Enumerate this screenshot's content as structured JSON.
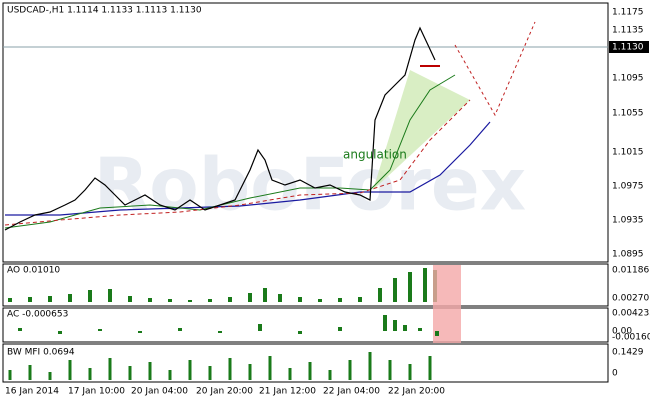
{
  "header": {
    "symbol_line": "USDCAD-,H1  1.1114 1.1133 1.1113 1.1130"
  },
  "annotation": "angulation",
  "watermark": "RoboForex",
  "price_axis": {
    "labels": [
      "1.1175",
      "1.1135",
      "1.1095",
      "1.1055",
      "1.1015",
      "1.0975",
      "1.0935",
      "1.0895"
    ],
    "current": "1.1130"
  },
  "panels": [
    {
      "label": "AO 0.01010",
      "axis": [
        "0.01186",
        "0.00270"
      ]
    },
    {
      "label": "AC -0.000653",
      "axis": [
        "0.004235",
        "0.00",
        "-0.00160"
      ]
    },
    {
      "label": "BW MFI 0.0694",
      "axis": [
        "0.1429",
        "0"
      ]
    }
  ],
  "time_axis": [
    "16 Jan 2014",
    "17 Jan 10:00",
    "20 Jan 04:00",
    "20 Jan 20:00",
    "21 Jan 12:00",
    "22 Jan 04:00",
    "22 Jan 20:00"
  ]
}
